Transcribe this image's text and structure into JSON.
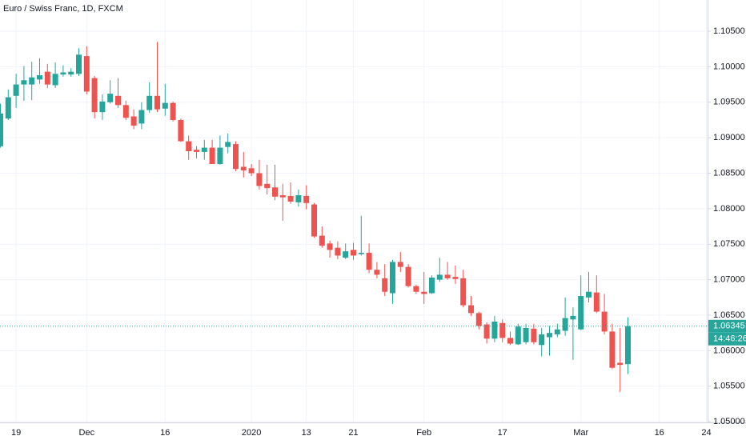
{
  "chart_data": {
    "type": "candlestick",
    "title": "Euro / Swiss Franc, 1D, FXCM",
    "categories": [
      null,
      null,
      "19",
      null,
      null,
      null,
      null,
      null,
      null,
      null,
      null,
      "Dec",
      null,
      null,
      null,
      null,
      null,
      null,
      null,
      null,
      null,
      "16",
      null,
      null,
      null,
      null,
      null,
      null,
      null,
      null,
      null,
      null,
      "2020",
      null,
      null,
      null,
      null,
      null,
      null,
      "13",
      null,
      null,
      null,
      null,
      null,
      "21",
      null,
      null,
      null,
      null,
      null,
      null,
      null,
      null,
      "Feb",
      null,
      null,
      null,
      null,
      null,
      null,
      null,
      null,
      null,
      "17",
      null,
      null,
      null,
      null,
      null,
      null,
      null,
      null,
      null,
      "Mar",
      null,
      null,
      null,
      null,
      null,
      null,
      null,
      null,
      null,
      "16",
      null,
      null,
      null,
      null,
      null,
      "24"
    ],
    "open": [
      1.0888,
      1.0927,
      1.0959,
      1.0975,
      1.0975,
      1.0982,
      1.0993,
      1.0974,
      1.0989,
      1.0989,
      1.099,
      1.1015,
      1.0984,
      1.0936,
      1.095,
      1.0959,
      1.0946,
      1.093,
      1.092,
      1.0939,
      1.0959,
      1.0941,
      1.0949,
      1.0925,
      1.0895,
      1.0883,
      1.088,
      1.0886,
      1.0863,
      1.0887,
      1.0891,
      1.0859,
      1.0857,
      1.085,
      1.0835,
      1.083,
      1.0819,
      1.0818,
      1.0809,
      1.0818,
      1.0806,
      1.0762,
      1.0751,
      1.0745,
      1.0731,
      1.0742,
      1.0736,
      1.0738,
      1.0714,
      1.0702,
      1.0681,
      1.0725,
      1.0718,
      1.0691,
      1.0683,
      1.0681,
      1.07,
      1.0707,
      1.0704,
      1.0702,
      1.0664,
      1.0653,
      1.0637,
      1.0617,
      1.0639,
      1.0618,
      1.0609,
      1.0612,
      1.0631,
      1.0608,
      1.0619,
      1.0623,
      1.0628,
      1.0644,
      1.063,
      1.0675,
      1.0682,
      1.0655,
      1.0627,
      1.0583,
      1.0581,
      null,
      null,
      null,
      null,
      null,
      null,
      null,
      null,
      null,
      null
    ],
    "high": [
      1.0948,
      1.0968,
      1.099,
      1.1001,
      1.1007,
      1.1012,
      1.1004,
      1.1006,
      1.1002,
      1.0998,
      1.1026,
      1.1029,
      1.0987,
      1.0961,
      1.0981,
      1.0984,
      1.0952,
      1.094,
      1.095,
      1.0978,
      1.1035,
      1.0976,
      1.0951,
      1.0927,
      1.0903,
      1.0888,
      1.0897,
      1.0897,
      1.0903,
      1.0906,
      1.0895,
      1.088,
      1.0863,
      1.0869,
      1.0862,
      1.0862,
      1.0835,
      1.0837,
      1.0827,
      1.0833,
      1.0808,
      1.0775,
      1.0755,
      1.0754,
      1.0751,
      1.0752,
      1.079,
      1.0751,
      1.0725,
      1.0722,
      1.0728,
      1.0739,
      1.0722,
      1.0693,
      1.0711,
      1.0706,
      1.0731,
      1.0725,
      1.072,
      1.0714,
      1.0677,
      1.0655,
      1.064,
      1.0649,
      1.0644,
      1.0627,
      1.0638,
      1.0638,
      1.0638,
      1.0632,
      1.0635,
      1.0638,
      1.0675,
      1.0661,
      1.0706,
      1.0711,
      1.0706,
      1.068,
      1.0638,
      1.0632,
      1.0647,
      null,
      null,
      null,
      null,
      null,
      null,
      null,
      null,
      null,
      null
    ],
    "low": [
      1.0886,
      1.0925,
      1.0942,
      1.0952,
      1.0953,
      1.0976,
      1.097,
      1.097,
      1.0986,
      1.0986,
      1.0987,
      1.0961,
      1.0927,
      1.0925,
      1.0948,
      1.0942,
      1.0925,
      1.0912,
      1.0912,
      1.0935,
      1.0936,
      1.0931,
      1.0923,
      1.0894,
      1.0869,
      1.0871,
      1.0869,
      1.0863,
      1.0862,
      1.0878,
      1.0853,
      1.0844,
      1.0846,
      1.0827,
      1.082,
      1.0812,
      1.0783,
      1.0807,
      1.0803,
      1.0799,
      1.0759,
      1.0745,
      1.0731,
      1.0729,
      1.0729,
      1.0728,
      1.0734,
      1.0709,
      1.0702,
      1.0677,
      1.0666,
      1.0711,
      1.0689,
      1.068,
      1.0666,
      1.068,
      1.0697,
      1.07,
      1.0694,
      1.0661,
      1.0649,
      1.063,
      1.061,
      1.0612,
      1.0612,
      1.0608,
      1.0608,
      1.0609,
      1.0609,
      1.0592,
      1.0593,
      1.0619,
      1.0621,
      1.0587,
      1.0629,
      1.0668,
      1.0653,
      1.0623,
      1.0574,
      1.0542,
      1.0567,
      null,
      null,
      null,
      null,
      null,
      null,
      null,
      null,
      null,
      null
    ],
    "close": [
      1.0934,
      1.0957,
      1.0975,
      1.0981,
      1.0985,
      1.0988,
      1.0975,
      1.099,
      1.0992,
      1.0993,
      1.1017,
      1.0965,
      1.0936,
      1.0951,
      1.0962,
      1.0946,
      1.0928,
      1.0917,
      1.0939,
      1.0959,
      1.094,
      1.0949,
      1.0925,
      1.0895,
      1.0881,
      1.088,
      1.0886,
      1.0863,
      1.0886,
      1.0894,
      1.0856,
      1.0854,
      1.085,
      1.0832,
      1.0829,
      1.0817,
      1.0816,
      1.081,
      1.0819,
      1.0808,
      1.0761,
      1.0748,
      1.0742,
      1.0734,
      1.074,
      1.0734,
      1.0738,
      1.0714,
      1.0707,
      1.0683,
      1.0725,
      1.0718,
      1.0691,
      1.0683,
      1.068,
      1.0703,
      1.0707,
      1.0702,
      1.0701,
      1.0664,
      1.0653,
      1.0635,
      1.0617,
      1.0641,
      1.0618,
      1.061,
      1.0634,
      1.0632,
      1.0612,
      1.0623,
      1.0625,
      1.063,
      1.0646,
      1.0649,
      1.0677,
      1.0683,
      1.0655,
      1.0627,
      1.0576,
      1.058,
      1.06345,
      null,
      null,
      null,
      null,
      null,
      null,
      null,
      null,
      null,
      null
    ],
    "up_color": "#26a69a",
    "down_color": "#ef5350",
    "ylim": [
      1.0499,
      1.1094
    ],
    "yticks": [
      {
        "value": 1.05,
        "label": "1.05000"
      },
      {
        "value": 1.055,
        "label": "1.05500"
      },
      {
        "value": 1.06,
        "label": "1.06000"
      },
      {
        "value": 1.065,
        "label": "1.06500"
      },
      {
        "value": 1.07,
        "label": "1.07000"
      },
      {
        "value": 1.075,
        "label": "1.07500"
      },
      {
        "value": 1.08,
        "label": "1.08000"
      },
      {
        "value": 1.085,
        "label": "1.08500"
      },
      {
        "value": 1.09,
        "label": "1.09000"
      },
      {
        "value": 1.095,
        "label": "1.09500"
      },
      {
        "value": 1.1,
        "label": "1.10000"
      },
      {
        "value": 1.105,
        "label": "1.10500"
      }
    ],
    "grid": true,
    "countdown": "14:46:26"
  }
}
